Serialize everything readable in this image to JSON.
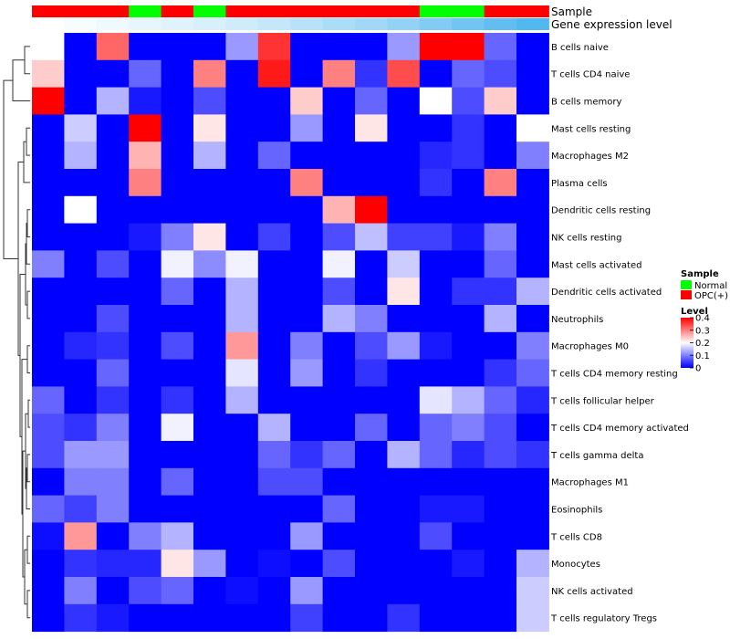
{
  "chart_data": {
    "type": "heatmap",
    "title": "",
    "annotation_labels": {
      "sample": "Sample",
      "expression": "Gene expression level"
    },
    "sample_groups": [
      "OPC(+)",
      "OPC(+)",
      "OPC(+)",
      "Normal",
      "OPC(+)",
      "Normal",
      "OPC(+)",
      "OPC(+)",
      "OPC(+)",
      "OPC(+)",
      "OPC(+)",
      "OPC(+)",
      "Normal",
      "Normal",
      "OPC(+)",
      "OPC(+)"
    ],
    "expression_level": [
      0.02,
      0.04,
      0.06,
      0.08,
      0.1,
      0.12,
      0.14,
      0.17,
      0.2,
      0.23,
      0.26,
      0.3,
      0.34,
      0.38,
      0.42,
      0.46
    ],
    "rows": [
      "B cells naive",
      "T cells CD4 naive",
      "B cells memory",
      "Mast cells resting",
      "Macrophages M2",
      "Plasma cells",
      "Dendritic cells resting",
      "NK cells resting",
      "Mast cells activated",
      "Dendritic cells activated",
      "Neutrophils",
      "Macrophages M0",
      "T cells CD4 memory resting",
      "T cells follicular helper",
      "T cells CD4 memory activated",
      "T cells gamma delta",
      "Macrophages M1",
      "Eosinophils",
      "T cells CD8",
      "Monocytes",
      "NK cells activated",
      "T cells regulatory  Tregs"
    ],
    "values": [
      [
        0.2,
        0.0,
        0.32,
        0.0,
        0.0,
        0.0,
        0.12,
        0.36,
        0.0,
        0.0,
        0.0,
        0.12,
        0.4,
        0.4,
        0.08,
        0.0
      ],
      [
        0.24,
        0.0,
        0.0,
        0.08,
        0.0,
        0.3,
        0.0,
        0.38,
        0.0,
        0.3,
        0.04,
        0.34,
        0.0,
        0.08,
        0.06,
        0.0
      ],
      [
        0.4,
        0.0,
        0.14,
        0.02,
        0.0,
        0.06,
        0.0,
        0.0,
        0.24,
        0.0,
        0.08,
        0.0,
        0.2,
        0.06,
        0.24,
        0.0
      ],
      [
        0.0,
        0.16,
        0.0,
        0.4,
        0.0,
        0.22,
        0.0,
        0.0,
        0.12,
        0.0,
        0.22,
        0.0,
        0.0,
        0.04,
        0.0,
        0.2
      ],
      [
        0.0,
        0.14,
        0.0,
        0.26,
        0.0,
        0.14,
        0.0,
        0.08,
        0.0,
        0.0,
        0.0,
        0.0,
        0.03,
        0.04,
        0.0,
        0.1
      ],
      [
        0.0,
        0.0,
        0.0,
        0.3,
        0.0,
        0.0,
        0.0,
        0.0,
        0.3,
        0.0,
        0.0,
        0.0,
        0.04,
        0.0,
        0.3,
        0.0
      ],
      [
        0.0,
        0.2,
        0.0,
        0.0,
        0.0,
        0.0,
        0.0,
        0.0,
        0.0,
        0.26,
        0.4,
        0.0,
        0.0,
        0.0,
        0.0,
        0.0
      ],
      [
        0.0,
        0.0,
        0.0,
        0.02,
        0.1,
        0.22,
        0.0,
        0.05,
        0.0,
        0.06,
        0.15,
        0.05,
        0.05,
        0.02,
        0.1,
        0.0
      ],
      [
        0.1,
        0.0,
        0.06,
        0.0,
        0.19,
        0.11,
        0.19,
        0.0,
        0.0,
        0.19,
        0.0,
        0.16,
        0.0,
        0.0,
        0.08,
        0.0
      ],
      [
        0.0,
        0.0,
        0.0,
        0.0,
        0.08,
        0.0,
        0.14,
        0.0,
        0.0,
        0.06,
        0.0,
        0.22,
        0.0,
        0.04,
        0.04,
        0.14
      ],
      [
        0.0,
        0.0,
        0.06,
        0.0,
        0.0,
        0.0,
        0.14,
        0.0,
        0.0,
        0.14,
        0.1,
        0.0,
        0.0,
        0.0,
        0.14,
        0.0
      ],
      [
        0.0,
        0.03,
        0.04,
        0.0,
        0.06,
        0.0,
        0.28,
        0.0,
        0.1,
        0.0,
        0.06,
        0.12,
        0.02,
        0.0,
        0.0,
        0.1
      ],
      [
        0.0,
        0.0,
        0.08,
        0.0,
        0.0,
        0.0,
        0.18,
        0.0,
        0.12,
        0.0,
        0.04,
        0.0,
        0.0,
        0.0,
        0.04,
        0.08
      ],
      [
        0.08,
        0.0,
        0.04,
        0.0,
        0.04,
        0.0,
        0.14,
        0.0,
        0.0,
        0.0,
        0.0,
        0.0,
        0.18,
        0.14,
        0.08,
        0.03
      ],
      [
        0.06,
        0.04,
        0.1,
        0.0,
        0.19,
        0.0,
        0.0,
        0.14,
        0.0,
        0.0,
        0.08,
        0.0,
        0.08,
        0.1,
        0.06,
        0.0
      ],
      [
        0.06,
        0.12,
        0.12,
        0.0,
        0.0,
        0.0,
        0.0,
        0.08,
        0.04,
        0.08,
        0.0,
        0.14,
        0.08,
        0.03,
        0.06,
        0.04
      ],
      [
        0.0,
        0.1,
        0.1,
        0.0,
        0.08,
        0.0,
        0.0,
        0.06,
        0.06,
        0.0,
        0.0,
        0.0,
        0.0,
        0.0,
        0.0,
        0.0
      ],
      [
        0.08,
        0.05,
        0.1,
        0.0,
        0.0,
        0.0,
        0.0,
        0.0,
        0.0,
        0.08,
        0.0,
        0.0,
        0.02,
        0.02,
        0.0,
        0.0
      ],
      [
        0.01,
        0.28,
        0.0,
        0.1,
        0.14,
        0.0,
        0.0,
        0.0,
        0.12,
        0.0,
        0.0,
        0.0,
        0.06,
        0.0,
        0.0,
        0.0
      ],
      [
        0.0,
        0.04,
        0.03,
        0.03,
        0.22,
        0.12,
        0.0,
        0.01,
        0.0,
        0.06,
        0.0,
        0.0,
        0.0,
        0.02,
        0.0,
        0.14
      ],
      [
        0.0,
        0.1,
        0.0,
        0.06,
        0.08,
        0.0,
        0.01,
        0.0,
        0.12,
        0.0,
        0.0,
        0.0,
        0.0,
        0.0,
        0.0,
        0.16
      ],
      [
        0.0,
        0.04,
        0.02,
        0.0,
        0.0,
        0.0,
        0.0,
        0.0,
        0.05,
        0.0,
        0.0,
        0.04,
        0.0,
        0.0,
        0.0,
        0.16
      ]
    ],
    "legend": {
      "sample": {
        "title": "Sample",
        "entries": [
          {
            "label": "Normal",
            "color": "#00ff00"
          },
          {
            "label": "OPC(+)",
            "color": "#ff0000"
          }
        ]
      },
      "level": {
        "title": "Level",
        "ticks": [
          "0.4",
          "0.3",
          "0.2",
          "0.1",
          "0"
        ],
        "tick_values": [
          0.4,
          0.3,
          0.2,
          0.1,
          0
        ],
        "range": [
          0,
          0.4
        ],
        "colors": [
          "#0000ff",
          "#ffffff",
          "#ff0000"
        ]
      }
    },
    "annotation_colors": {
      "Normal": "#00ff00",
      "OPC(+)": "#ff0000",
      "expr_low": "#ffffff",
      "expr_high": "#52b8f0"
    }
  }
}
